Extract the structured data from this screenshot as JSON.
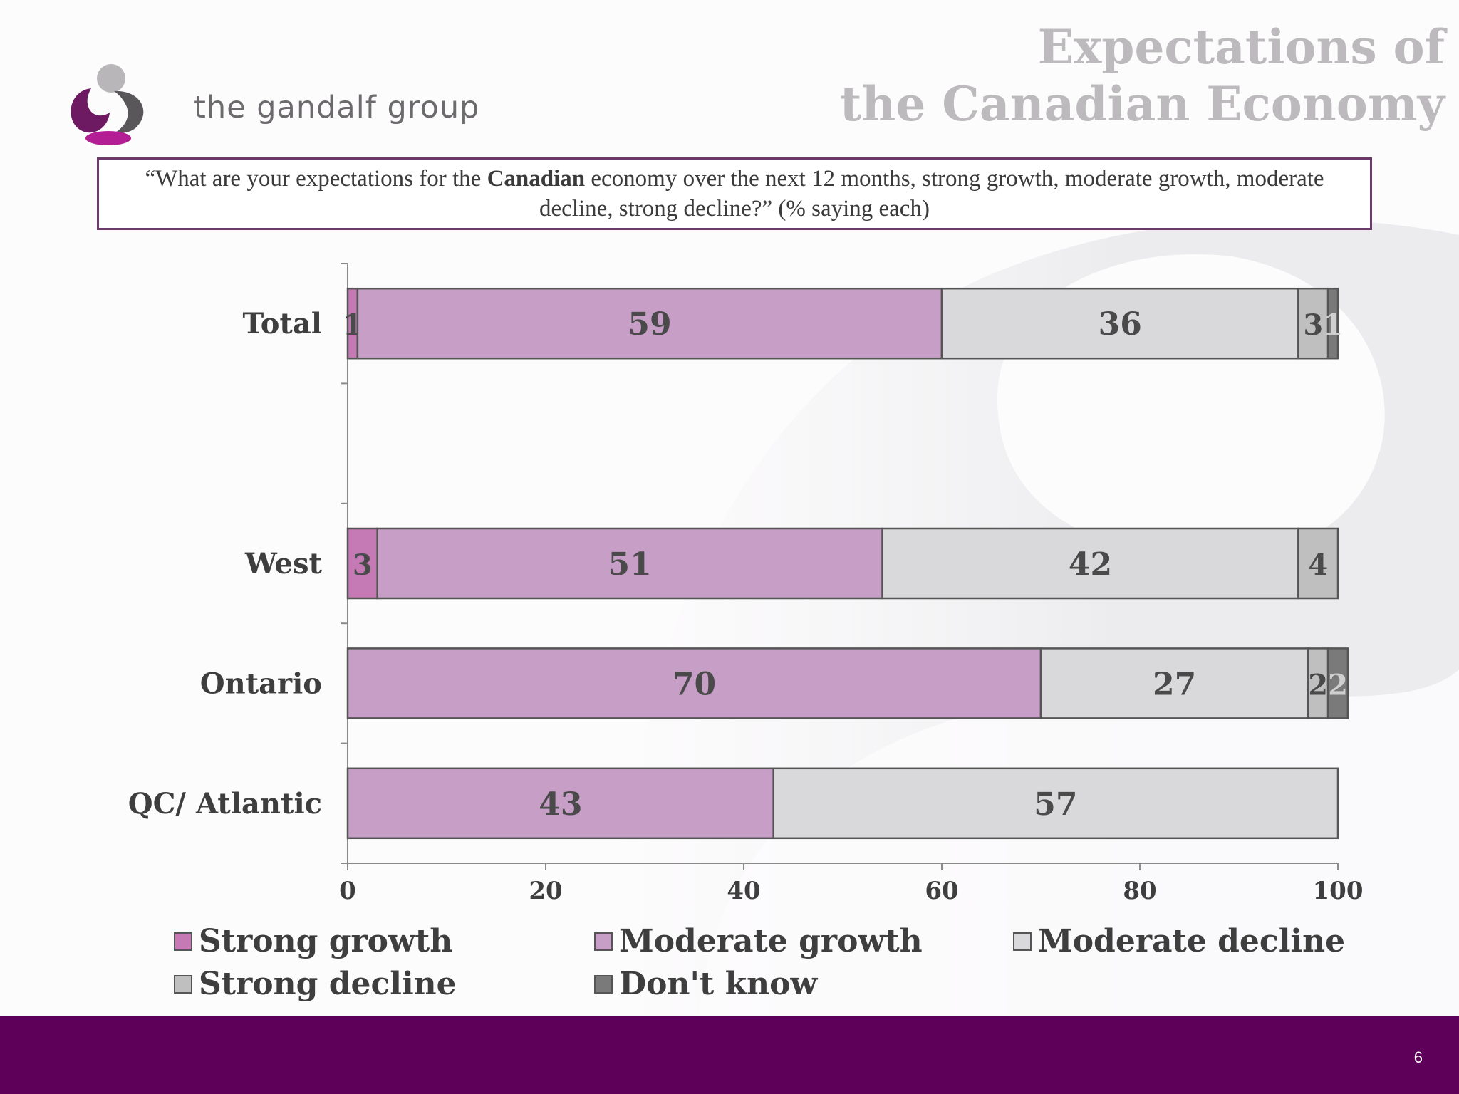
{
  "brand": {
    "name": "the gandalf group"
  },
  "title": {
    "line1": "Expectations of",
    "line2": "the Canadian Economy"
  },
  "question": {
    "before": "“What are your expectations for the ",
    "bold": "Canadian",
    "after": " economy over the next 12 months, strong growth, moderate growth, moderate decline, strong decline?” (% saying each)"
  },
  "colors": {
    "strong_growth": "#c57ab6",
    "moderate_growth": "#c69ec6",
    "moderate_decline": "#d9d8da",
    "strong_decline": "#c0bfc0",
    "dont_know": "#7a7a7a",
    "footer": "#5e0059",
    "question_border": "#6b3a6b"
  },
  "chart_data": {
    "type": "bar",
    "orientation": "horizontal",
    "stacked": true,
    "title": "",
    "xlabel": "",
    "ylabel": "",
    "xlim": [
      0,
      100
    ],
    "x_ticks": [
      0,
      20,
      40,
      60,
      80,
      100
    ],
    "categories": [
      "Total",
      "",
      "West",
      "Ontario",
      "QC/ Atlantic"
    ],
    "series": [
      {
        "name": "Strong growth",
        "color": "#c57ab6",
        "values": [
          1,
          0,
          3,
          0,
          0
        ]
      },
      {
        "name": "Moderate growth",
        "color": "#c69ec6",
        "values": [
          59,
          0,
          51,
          70,
          43
        ]
      },
      {
        "name": "Moderate decline",
        "color": "#d9d8da",
        "values": [
          36,
          0,
          42,
          27,
          57
        ]
      },
      {
        "name": "Strong decline",
        "color": "#c0bfc0",
        "values": [
          3,
          0,
          4,
          2,
          0
        ]
      },
      {
        "name": "Don't know",
        "color": "#7a7a7a",
        "values": [
          1,
          0,
          0,
          2,
          0
        ]
      }
    ],
    "data_labels": true,
    "grid": false,
    "legend_position": "bottom"
  },
  "page_number": "6"
}
